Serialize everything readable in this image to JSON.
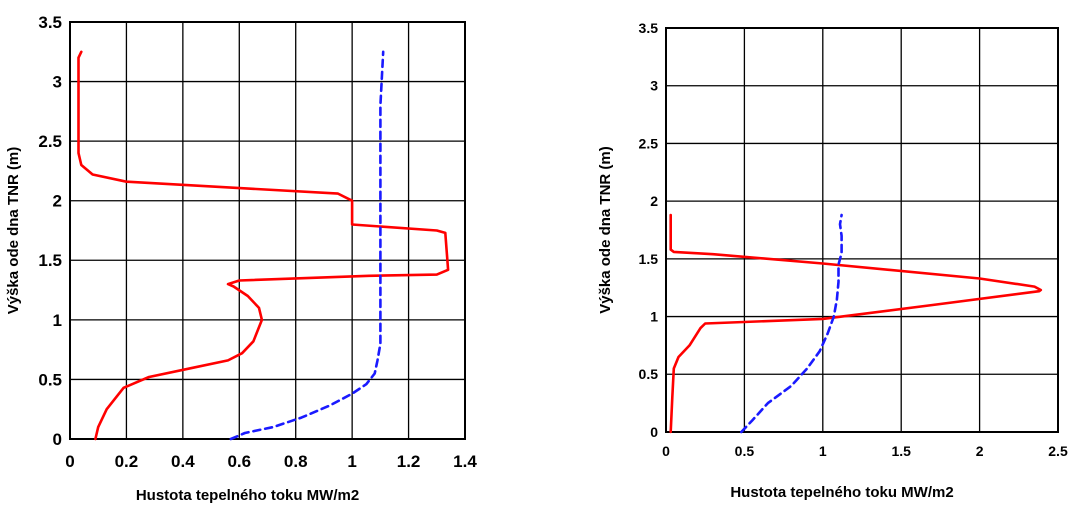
{
  "chart_data": [
    {
      "type": "line",
      "xlabel": "Hustota tepelného toku MW/m2",
      "ylabel": "Výška ode dna TNR (m)",
      "xlim": [
        0,
        1.4
      ],
      "ylim": [
        0,
        3.5
      ],
      "xticks": [
        "0",
        "0.2",
        "0.4",
        "0.6",
        "0.8",
        "1",
        "1.2",
        "1.4"
      ],
      "yticks": [
        "0",
        "0.5",
        "1",
        "1.5",
        "2",
        "2.5",
        "3",
        "3.5"
      ],
      "grid": true,
      "series": [
        {
          "color": "#ff0000",
          "style": "solid",
          "x": [
            0.09,
            0.1,
            0.13,
            0.19,
            0.28,
            0.42,
            0.56,
            0.61,
            0.65,
            0.68,
            0.67,
            0.63,
            0.58,
            0.56,
            0.6,
            1.06,
            1.3,
            1.34,
            1.33,
            1.3,
            1.0,
            1.0,
            0.95,
            0.2,
            0.08,
            0.04,
            0.03,
            0.03,
            0.03,
            0.03,
            0.03,
            0.03,
            0.04
          ],
          "y": [
            0.0,
            0.1,
            0.25,
            0.43,
            0.52,
            0.59,
            0.66,
            0.72,
            0.82,
            1.0,
            1.1,
            1.2,
            1.28,
            1.3,
            1.33,
            1.37,
            1.38,
            1.42,
            1.73,
            1.75,
            1.8,
            2.0,
            2.06,
            2.16,
            2.22,
            2.3,
            2.4,
            2.5,
            2.7,
            3.0,
            3.1,
            3.2,
            3.25
          ]
        },
        {
          "color": "#1a1aff",
          "style": "dashed",
          "x": [
            0.57,
            0.62,
            0.72,
            0.82,
            0.92,
            1.0,
            1.05,
            1.08,
            1.09,
            1.1,
            1.1,
            1.1,
            1.1,
            1.11
          ],
          "y": [
            0.0,
            0.05,
            0.1,
            0.18,
            0.28,
            0.38,
            0.46,
            0.55,
            0.66,
            0.8,
            1.2,
            2.0,
            2.8,
            3.25
          ]
        }
      ]
    },
    {
      "type": "line",
      "xlabel": "Hustota tepelného toku MW/m2",
      "ylabel": "Výška ode dna TNR (m)",
      "xlim": [
        0,
        2.5
      ],
      "ylim": [
        0,
        3.5
      ],
      "xticks": [
        "0",
        "0.5",
        "1",
        "1.5",
        "2",
        "2.5"
      ],
      "yticks": [
        "0",
        "0.5",
        "1",
        "1.5",
        "2",
        "2.5",
        "3",
        "3.5"
      ],
      "grid": true,
      "series": [
        {
          "color": "#ff0000",
          "style": "solid",
          "x": [
            0.03,
            0.04,
            0.05,
            0.08,
            0.15,
            0.22,
            0.25,
            1.0,
            1.7,
            2.38,
            2.39,
            2.35,
            2.0,
            1.0,
            0.3,
            0.05,
            0.03,
            0.03,
            0.03
          ],
          "y": [
            0.0,
            0.3,
            0.55,
            0.65,
            0.75,
            0.9,
            0.94,
            0.98,
            1.1,
            1.22,
            1.23,
            1.26,
            1.33,
            1.46,
            1.54,
            1.56,
            1.58,
            1.7,
            1.88
          ]
        },
        {
          "color": "#1a1aff",
          "style": "dashed",
          "x": [
            0.48,
            0.55,
            0.65,
            0.8,
            0.9,
            0.98,
            1.03,
            1.07,
            1.09,
            1.1,
            1.1,
            1.12,
            1.12,
            1.11,
            1.12
          ],
          "y": [
            0.0,
            0.1,
            0.25,
            0.4,
            0.55,
            0.7,
            0.85,
            1.0,
            1.15,
            1.3,
            1.45,
            1.55,
            1.7,
            1.8,
            1.88
          ]
        }
      ]
    }
  ]
}
